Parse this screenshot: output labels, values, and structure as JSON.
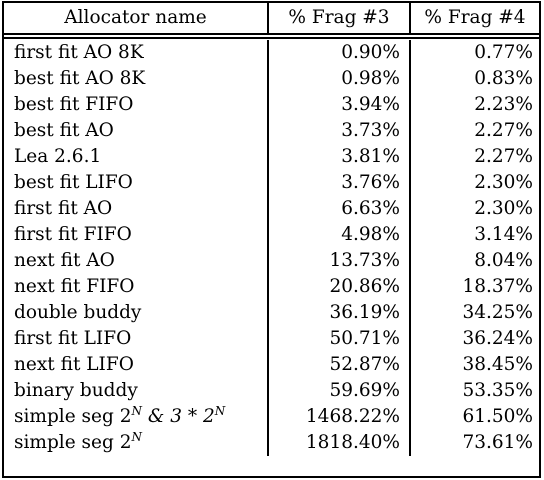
{
  "columns": [
    "Allocator name",
    "% Frag #3",
    "% Frag #4"
  ],
  "rows": [
    {
      "name": "first fit AO 8K",
      "frag3": "0.90%",
      "frag4": "0.77%"
    },
    {
      "name": "best fit AO 8K",
      "frag3": "0.98%",
      "frag4": "0.83%"
    },
    {
      "name": "best fit FIFO",
      "frag3": "3.94%",
      "frag4": "2.23%"
    },
    {
      "name": "best fit AO",
      "frag3": "3.73%",
      "frag4": "2.27%"
    },
    {
      "name": "Lea 2.6.1",
      "frag3": "3.81%",
      "frag4": "2.27%"
    },
    {
      "name": "best fit LIFO",
      "frag3": "3.76%",
      "frag4": "2.30%"
    },
    {
      "name": "first fit AO",
      "frag3": "6.63%",
      "frag4": "2.30%"
    },
    {
      "name": "first fit FIFO",
      "frag3": "4.98%",
      "frag4": "3.14%"
    },
    {
      "name": "next fit AO",
      "frag3": "13.73%",
      "frag4": "8.04%"
    },
    {
      "name": "next fit FIFO",
      "frag3": "20.86%",
      "frag4": "18.37%"
    },
    {
      "name": "double buddy",
      "frag3": "36.19%",
      "frag4": "34.25%"
    },
    {
      "name": "first fit LIFO",
      "frag3": "50.71%",
      "frag4": "36.24%"
    },
    {
      "name": "next fit LIFO",
      "frag3": "52.87%",
      "frag4": "38.45%"
    },
    {
      "name": "binary buddy",
      "frag3": "59.69%",
      "frag4": "53.35%"
    }
  ],
  "special_rows": [
    {
      "name_prefix": "simple seg 2",
      "name_sup1": "N",
      "name_mid": " & 3 * 2",
      "name_sup2": "N",
      "frag3": "1468.22%",
      "frag4": "61.50%"
    },
    {
      "name_prefix": "simple seg 2",
      "name_sup1": "N",
      "frag3": "1818.40%",
      "frag4": "73.61%"
    }
  ]
}
